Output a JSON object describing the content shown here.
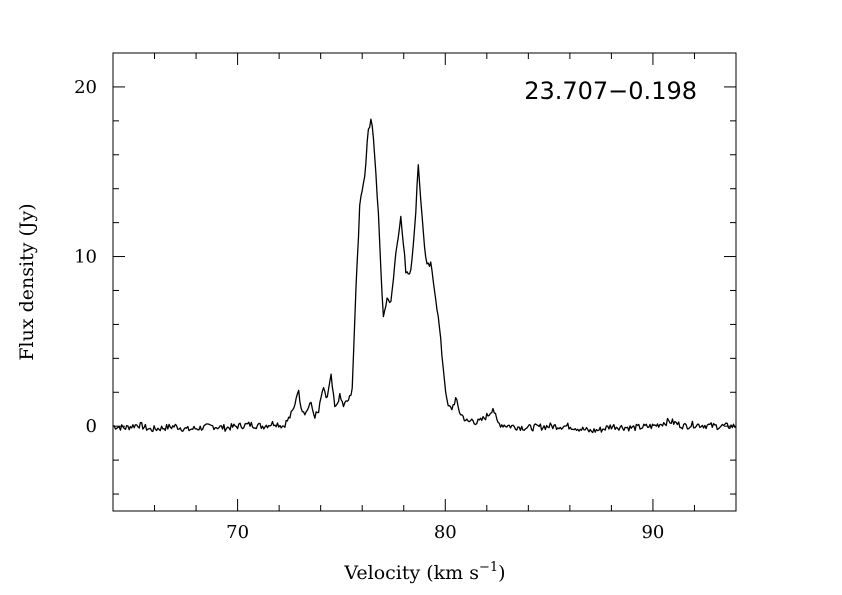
{
  "chart_data": {
    "type": "line",
    "title": "",
    "annotation": "23.707−0.198",
    "xlabel": "Velocity (km s",
    "xlabel_sup": "−1",
    "xlabel_close": ")",
    "ylabel": "Flux density (Jy)",
    "xlim": [
      64,
      94
    ],
    "ylim": [
      -5,
      22
    ],
    "xticks": [
      70,
      80,
      90
    ],
    "xtick_labels": [
      "70",
      "80",
      "90"
    ],
    "yticks": [
      0,
      10,
      20
    ],
    "ytick_labels": [
      "0",
      "10",
      "20"
    ],
    "grid": false,
    "legend": "none",
    "line_color": "#000000",
    "series": [
      {
        "x": [
          64.0,
          64.6,
          65.2,
          65.8,
          66.4,
          67.0,
          67.6,
          68.2,
          68.8,
          69.4,
          70.0,
          70.6,
          71.2,
          71.8,
          72.2,
          72.5,
          72.7,
          72.9,
          73.1,
          73.3,
          73.5,
          73.7,
          73.9,
          74.1,
          74.3,
          74.5,
          74.7,
          74.9,
          75.1,
          75.3,
          75.5,
          75.7,
          75.9,
          76.1,
          76.3,
          76.45,
          76.6,
          76.8,
          77.0,
          77.2,
          77.4,
          77.6,
          77.85,
          78.1,
          78.3,
          78.5,
          78.7,
          78.9,
          79.1,
          79.3,
          79.5,
          79.7,
          79.9,
          80.1,
          80.3,
          80.5,
          80.7,
          80.9,
          81.1,
          81.3,
          81.5,
          81.7,
          81.9,
          82.1,
          82.3,
          82.5,
          82.7,
          83.2,
          84.0,
          85.0,
          86.0,
          87.0,
          87.5,
          88.0,
          89.0,
          90.0,
          90.8,
          91.5,
          92.0,
          93.0,
          94.0
        ],
        "y": [
          0.0,
          -0.1,
          0.1,
          -0.2,
          -0.1,
          0.0,
          -0.2,
          -0.1,
          0.0,
          -0.1,
          0.0,
          0.1,
          0.0,
          0.2,
          0.0,
          0.5,
          1.0,
          2.2,
          1.0,
          0.8,
          1.4,
          0.6,
          0.8,
          2.2,
          1.6,
          2.9,
          0.9,
          1.8,
          1.2,
          1.5,
          1.8,
          8.0,
          13.5,
          14.5,
          17.5,
          18.3,
          16.0,
          12.0,
          6.5,
          7.4,
          7.5,
          10.0,
          12.4,
          9.2,
          9.0,
          11.0,
          15.5,
          12.0,
          9.4,
          9.5,
          8.0,
          6.0,
          3.5,
          1.2,
          1.0,
          1.6,
          0.8,
          0.5,
          0.2,
          0.4,
          0.2,
          0.3,
          0.5,
          0.7,
          1.1,
          0.2,
          0.1,
          0.0,
          -0.1,
          0.0,
          0.0,
          -0.3,
          -0.2,
          0.0,
          -0.1,
          0.0,
          0.3,
          0.0,
          0.1,
          0.0,
          0.0
        ]
      }
    ]
  }
}
